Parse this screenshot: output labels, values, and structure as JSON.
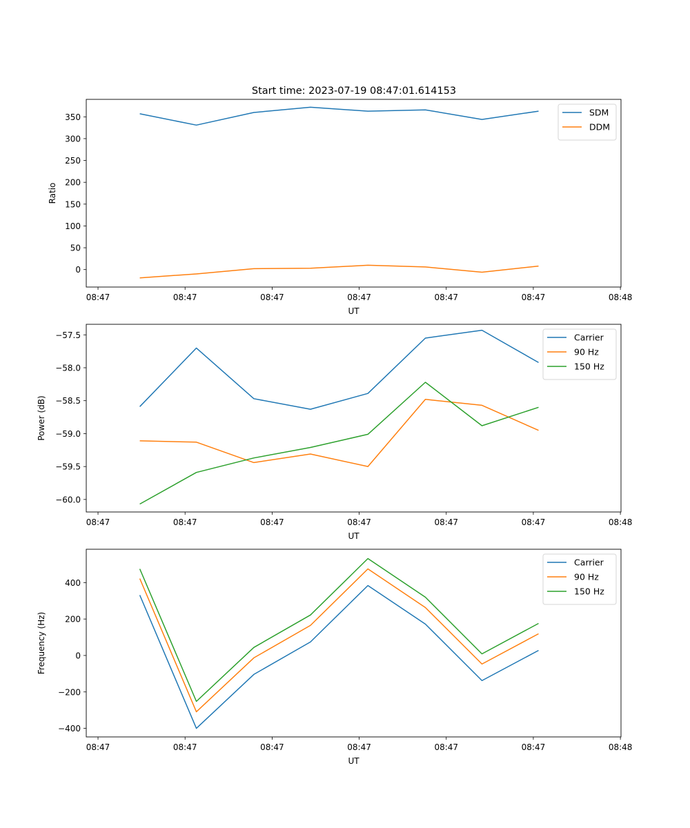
{
  "figure_title": "Start time: 2023-07-19 08:47:01.614153",
  "chart_data": [
    {
      "type": "line",
      "title": "Start time: 2023-07-19 08:47:01.614153",
      "xlabel": "UT",
      "ylabel": "Ratio",
      "x_unit": "seconds after 08:47:00",
      "x": [
        4.8,
        11.3,
        17.9,
        24.4,
        31.0,
        37.6,
        44.1,
        50.6
      ],
      "xlim": [
        -1.35,
        60.07
      ],
      "xticks": [
        0,
        10,
        20,
        30,
        40,
        50,
        60
      ],
      "xtick_labels": [
        "08:47",
        "08:47",
        "08:47",
        "08:47",
        "08:47",
        "08:47",
        "08:48"
      ],
      "ylim": [
        -40,
        390
      ],
      "yticks": [
        0,
        50,
        100,
        150,
        200,
        250,
        300,
        350
      ],
      "ytick_labels": [
        "0",
        "50",
        "100",
        "150",
        "200",
        "250",
        "300",
        "350"
      ],
      "grid": false,
      "legend": "top-right",
      "series": [
        {
          "name": "SDM",
          "color": "#1f77b4",
          "values": [
            357,
            331,
            360,
            372,
            363,
            366,
            344,
            363
          ]
        },
        {
          "name": "DDM",
          "color": "#ff7f0e",
          "values": [
            -19,
            -10,
            2,
            3,
            10,
            6,
            -6,
            8
          ]
        }
      ]
    },
    {
      "type": "line",
      "title": "",
      "xlabel": "UT",
      "ylabel": "Power (dB)",
      "x_unit": "seconds after 08:47:00",
      "x": [
        4.8,
        11.3,
        17.9,
        24.4,
        31.0,
        37.6,
        44.1,
        50.6
      ],
      "xlim": [
        -1.35,
        60.07
      ],
      "xticks": [
        0,
        10,
        20,
        30,
        40,
        50,
        60
      ],
      "xtick_labels": [
        "08:47",
        "08:47",
        "08:47",
        "08:47",
        "08:47",
        "08:47",
        "08:48"
      ],
      "ylim": [
        -60.19,
        -57.34
      ],
      "yticks": [
        -60.0,
        -59.5,
        -59.0,
        -58.5,
        -58.0,
        -57.5
      ],
      "ytick_labels": [
        "−60.0",
        "−59.5",
        "−59.0",
        "−58.5",
        "−58.0",
        "−57.5"
      ],
      "grid": false,
      "legend": "top-right",
      "series": [
        {
          "name": "Carrier",
          "color": "#1f77b4",
          "values": [
            -58.59,
            -57.7,
            -58.47,
            -58.63,
            -58.39,
            -57.55,
            -57.43,
            -57.92
          ]
        },
        {
          "name": "90 Hz",
          "color": "#ff7f0e",
          "values": [
            -59.11,
            -59.13,
            -59.44,
            -59.31,
            -59.5,
            -58.48,
            -58.57,
            -58.95
          ]
        },
        {
          "name": "150 Hz",
          "color": "#2ca02c",
          "values": [
            -60.07,
            -59.59,
            -59.37,
            -59.21,
            -59.01,
            -58.22,
            -58.88,
            -58.6
          ]
        }
      ]
    },
    {
      "type": "line",
      "title": "",
      "xlabel": "UT",
      "ylabel": "Frequency (Hz)",
      "x_unit": "seconds after 08:47:00",
      "x": [
        4.8,
        11.3,
        17.9,
        24.4,
        31.0,
        37.6,
        44.1,
        50.6
      ],
      "xlim": [
        -1.35,
        60.07
      ],
      "xticks": [
        0,
        10,
        20,
        30,
        40,
        50,
        60
      ],
      "xtick_labels": [
        "08:47",
        "08:47",
        "08:47",
        "08:47",
        "08:47",
        "08:47",
        "08:48"
      ],
      "ylim": [
        -447,
        583
      ],
      "yticks": [
        -400,
        -200,
        0,
        200,
        400
      ],
      "ytick_labels": [
        "−400",
        "−200",
        "0",
        "200",
        "400"
      ],
      "grid": false,
      "legend": "top-right",
      "series": [
        {
          "name": "Carrier",
          "color": "#1f77b4",
          "values": [
            331,
            -400,
            -104,
            74,
            384,
            172,
            -138,
            28
          ]
        },
        {
          "name": "90 Hz",
          "color": "#ff7f0e",
          "values": [
            422,
            -309,
            -13,
            165,
            475,
            263,
            -47,
            119
          ]
        },
        {
          "name": "150 Hz",
          "color": "#2ca02c",
          "values": [
            475,
            -252,
            44,
            222,
            532,
            320,
            9,
            176
          ]
        }
      ]
    }
  ]
}
